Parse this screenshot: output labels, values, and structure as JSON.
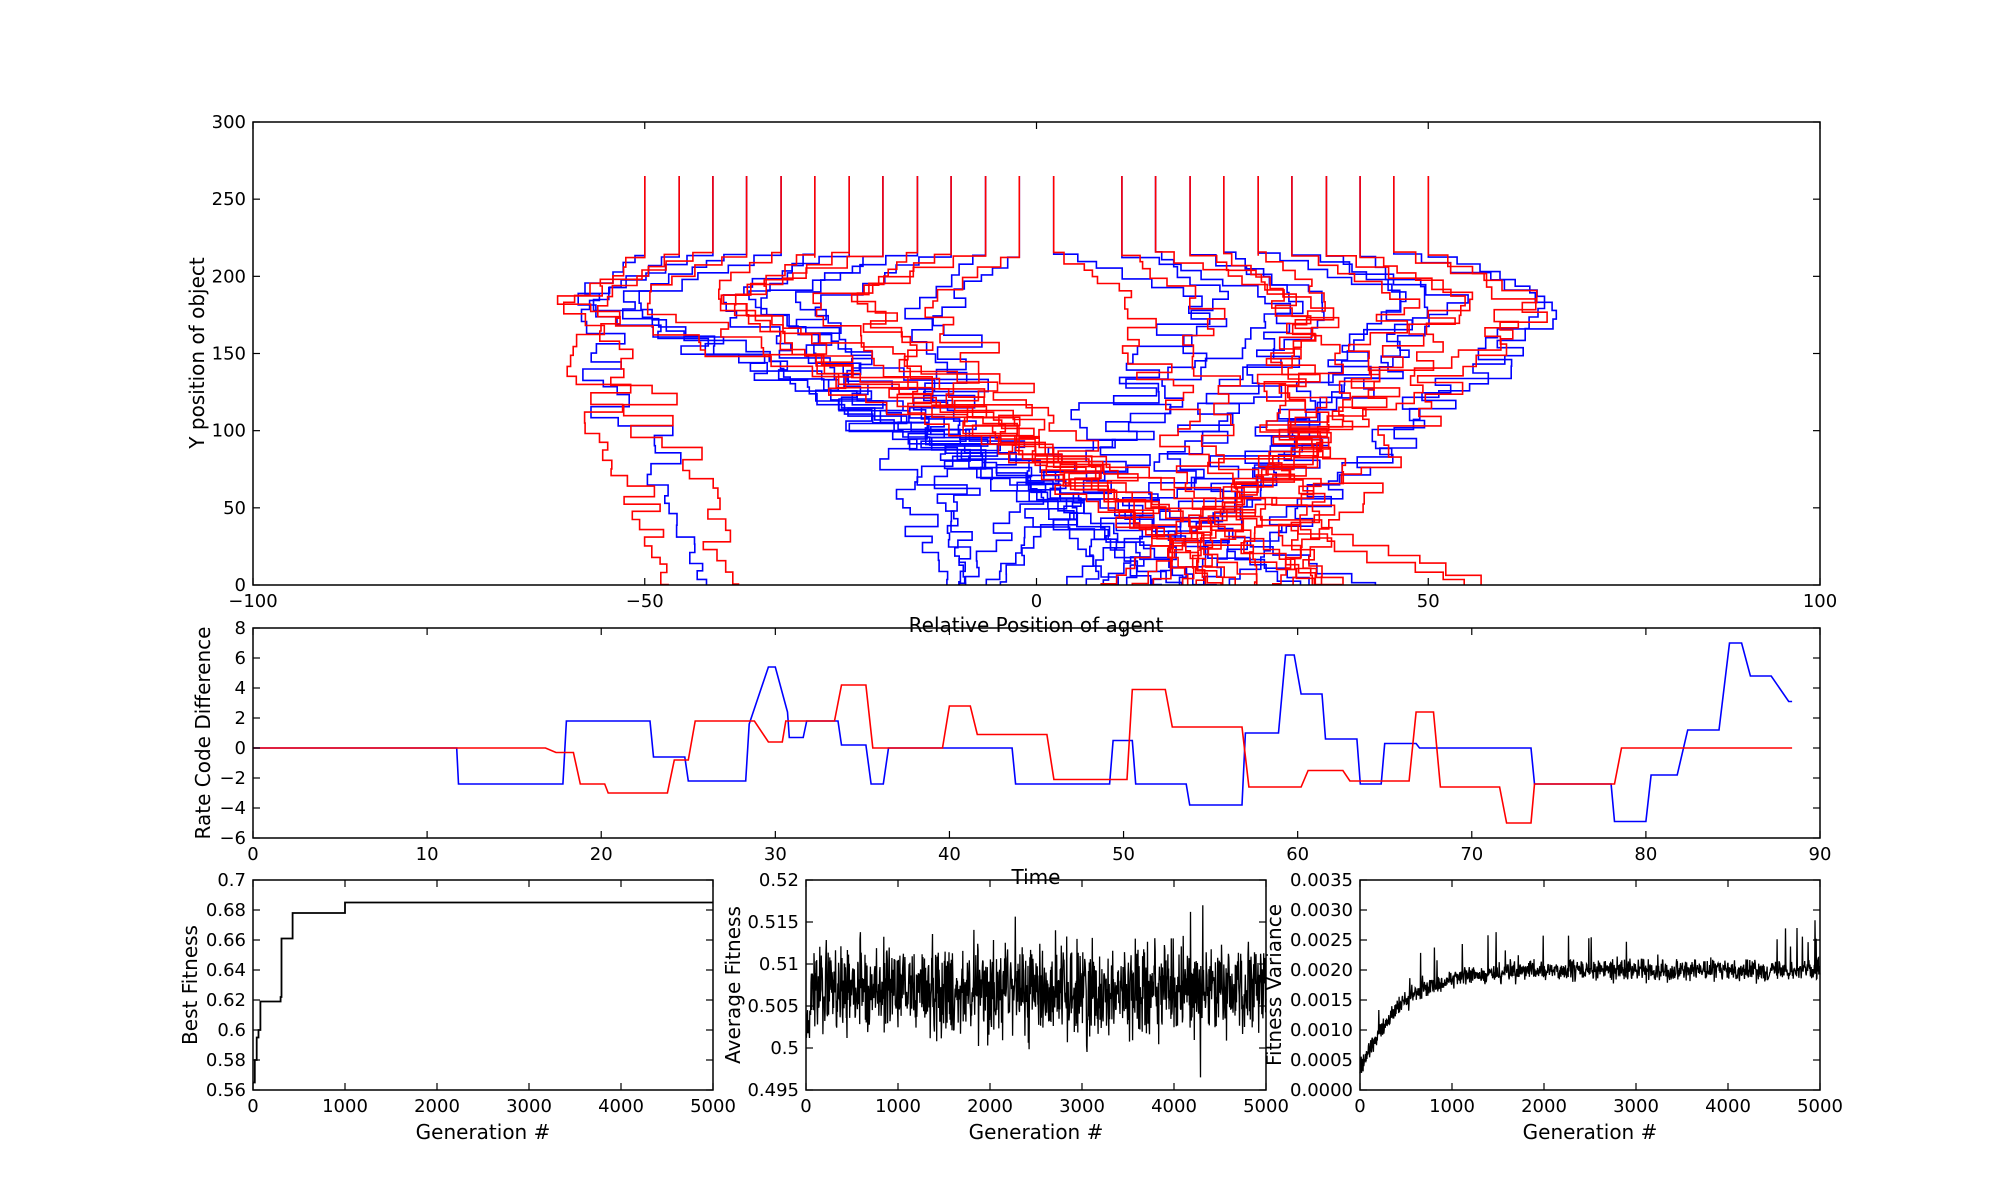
{
  "chart_data": [
    {
      "type": "line",
      "xlabel": "Relative Position of agent",
      "ylabel": "Y position of object",
      "xlim": [
        -100,
        100
      ],
      "ylim": [
        0,
        300
      ],
      "xticks": [
        -100,
        -50,
        0,
        50,
        100
      ],
      "yticks": [
        0,
        50,
        100,
        150,
        200,
        250,
        300
      ],
      "series_colors": [
        "#0000ff",
        "#ff0000"
      ],
      "start_positions": [
        -50,
        -45.6,
        -41.3,
        -37,
        -32.6,
        -28.3,
        -23.9,
        -19.6,
        -15.2,
        -10.9,
        -6.5,
        -2.2,
        2.2,
        10.9,
        15.2,
        19.6,
        23.9,
        28.3,
        32.6,
        37,
        41.3,
        45.6,
        50
      ],
      "start_y": 265,
      "turn_y": 220,
      "end_positions_blue": [
        -42,
        44,
        37,
        35,
        23,
        21,
        19,
        16,
        12,
        -11,
        -9,
        -10,
        -10,
        -7,
        -5,
        3,
        6,
        8,
        10,
        14,
        17,
        20,
        24
      ],
      "end_positions_red": [
        -47,
        -38,
        57,
        61,
        41,
        37,
        39,
        31,
        27,
        25,
        24,
        21,
        22,
        28,
        33,
        36,
        35,
        20,
        18,
        14,
        12,
        8,
        30
      ],
      "grid": false,
      "legend": "none"
    },
    {
      "type": "line",
      "xlabel": "Time",
      "ylabel": "Rate Code Difference",
      "xlim": [
        0,
        90
      ],
      "ylim": [
        -6,
        8
      ],
      "xticks": [
        0,
        10,
        20,
        30,
        40,
        50,
        60,
        70,
        80,
        90
      ],
      "yticks": [
        -6,
        -4,
        -2,
        0,
        2,
        4,
        6,
        8
      ],
      "series": [
        {
          "color": "#0000ff",
          "x": [
            0,
            11.7,
            11.8,
            17.8,
            18,
            22.8,
            23,
            24.8,
            25,
            28.3,
            28.5,
            29.6,
            30,
            30.7,
            30.8,
            31.6,
            31.8,
            33.6,
            33.8,
            35.2,
            35.5,
            36.2,
            36.5,
            43.6,
            43.8,
            49.2,
            49.4,
            50.5,
            50.7,
            53.6,
            53.8,
            56.8,
            57,
            58.9,
            59.3,
            59.8,
            60.2,
            61.4,
            61.6,
            63.4,
            63.6,
            64.8,
            65,
            66.8,
            67,
            73.4,
            73.6,
            78,
            78.2,
            80,
            80.3,
            81.8,
            82.4,
            84.2,
            84.8,
            85.5,
            86,
            87.2,
            88.2,
            88.4
          ],
          "y": [
            0,
            0,
            -2.4,
            -2.4,
            1.8,
            1.8,
            -0.6,
            -0.6,
            -2.2,
            -2.2,
            1.6,
            5.4,
            5.4,
            2.4,
            0.7,
            0.7,
            1.8,
            1.8,
            0.2,
            0.2,
            -2.4,
            -2.4,
            0,
            0,
            -2.4,
            -2.4,
            0.5,
            0.5,
            -2.4,
            -2.4,
            -3.8,
            -3.8,
            1,
            1,
            6.2,
            6.2,
            3.6,
            3.6,
            0.6,
            0.6,
            -2.4,
            -2.4,
            0.3,
            0.3,
            0,
            0,
            -2.4,
            -2.4,
            -4.9,
            -4.9,
            -1.8,
            -1.8,
            1.2,
            1.2,
            7,
            7,
            4.8,
            4.8,
            3.1,
            3.1
          ]
        },
        {
          "color": "#ff0000",
          "x": [
            0,
            16.8,
            17.4,
            18.4,
            18.8,
            20.2,
            20.4,
            23.8,
            24.2,
            25,
            25.4,
            28.8,
            29.6,
            30.4,
            30.6,
            33.4,
            33.8,
            35.2,
            35.6,
            39.6,
            40,
            41.2,
            41.6,
            45.6,
            46,
            50.2,
            50.5,
            52.4,
            52.8,
            56.8,
            57.2,
            60.2,
            60.6,
            62.6,
            63,
            66.4,
            66.8,
            67.8,
            68.2,
            71.6,
            72,
            73.4,
            73.6,
            78.2,
            78.6,
            88.4
          ],
          "y": [
            0,
            0,
            -0.3,
            -0.3,
            -2.4,
            -2.4,
            -3,
            -3,
            -0.8,
            -0.8,
            1.8,
            1.8,
            0.4,
            0.4,
            1.8,
            1.8,
            4.2,
            4.2,
            0,
            0,
            2.8,
            2.8,
            0.9,
            0.9,
            -2.1,
            -2.1,
            3.9,
            3.9,
            1.4,
            1.4,
            -2.6,
            -2.6,
            -1.5,
            -1.5,
            -2.2,
            -2.2,
            2.4,
            2.4,
            -2.6,
            -2.6,
            -5,
            -5,
            -2.4,
            -2.4,
            0,
            0
          ]
        }
      ],
      "grid": false,
      "legend": "none"
    },
    {
      "type": "line",
      "xlabel": "Generation #",
      "ylabel": "Best Fitness",
      "xlim": [
        0,
        5000
      ],
      "ylim": [
        0.56,
        0.7
      ],
      "xticks": [
        0,
        1000,
        2000,
        3000,
        4000,
        5000
      ],
      "yticks": [
        0.56,
        0.58,
        0.6,
        0.62,
        0.64,
        0.66,
        0.68,
        0.7
      ],
      "x": [
        0,
        20,
        40,
        60,
        80,
        120,
        300,
        310,
        380,
        430,
        900,
        1000,
        5000
      ],
      "y": [
        0.565,
        0.58,
        0.595,
        0.6,
        0.619,
        0.619,
        0.622,
        0.661,
        0.661,
        0.678,
        0.678,
        0.685,
        0.685
      ],
      "color": "#000000"
    },
    {
      "type": "line",
      "xlabel": "Generation #",
      "ylabel": "Average Fitness",
      "xlim": [
        0,
        5000
      ],
      "ylim": [
        0.495,
        0.52
      ],
      "xticks": [
        0,
        1000,
        2000,
        3000,
        4000,
        5000
      ],
      "yticks": [
        0.495,
        0.5,
        0.505,
        0.51,
        0.515,
        0.52
      ],
      "mean": 0.507,
      "spread": 0.004,
      "points": 5000,
      "color": "#000000"
    },
    {
      "type": "line",
      "xlabel": "Generation #",
      "ylabel": "Fitness Variance",
      "xlim": [
        0,
        5000
      ],
      "ylim": [
        0,
        0.0035
      ],
      "xticks": [
        0,
        1000,
        2000,
        3000,
        4000,
        5000
      ],
      "yticks": [
        "0.0000",
        "0.0005",
        "0.0010",
        "0.0015",
        "0.0020",
        "0.0025",
        "0.0030",
        "0.0035"
      ],
      "plateau": 0.002,
      "start": 0.0003,
      "points": 5000,
      "color": "#000000"
    }
  ]
}
